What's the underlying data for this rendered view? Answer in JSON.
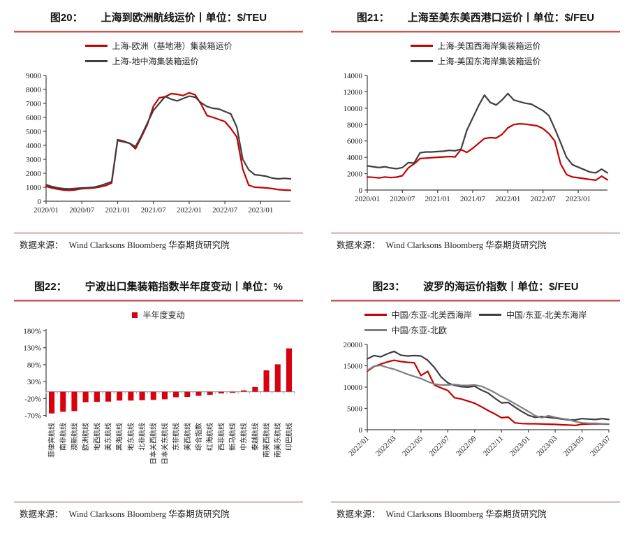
{
  "source_note": {
    "label": "数据来源：",
    "text": "Wind Clarksons Bloomberg 华泰期货研究院"
  },
  "colors": {
    "red": "#c40000",
    "bar_red": "#d8020f",
    "dark": "#3f3f3f",
    "gray": "#7f7f7f",
    "axis": "#404040",
    "grid_gray": "#a6a6a6",
    "divider_red": "#b43c3c"
  },
  "figures": [
    {
      "label": "图20：",
      "title": "上海到欧洲航线运价丨单位：$/TEU"
    },
    {
      "label": "图21：",
      "title": "上海至美东美西港口运价丨单位：$/FEU"
    },
    {
      "label": "图22：",
      "title": "宁波出口集装箱指数半年度变动丨单位：%"
    },
    {
      "label": "图23：",
      "title": "波罗的海运价指数丨单位：$/FEU"
    }
  ],
  "chart_data": [
    {
      "type": "line",
      "title": "上海到欧洲航线运价",
      "unit": "$/TEU",
      "n_points": 42,
      "x_tick_indices": [
        0,
        6,
        12,
        18,
        24,
        30,
        36
      ],
      "x_tick_labels": [
        "2020/01",
        "2020/07",
        "2021/01",
        "2021/07",
        "2022/01",
        "2022/07",
        "2023/01"
      ],
      "ylim": [
        0,
        9000
      ],
      "y_ticks": [
        0,
        1000,
        2000,
        3000,
        4000,
        5000,
        6000,
        7000,
        8000,
        9000
      ],
      "legend_position": "top",
      "grid": false,
      "series": [
        {
          "name": "上海-欧洲（基地港）集装箱运价",
          "color": "red",
          "values": [
            1060,
            950,
            860,
            800,
            780,
            820,
            900,
            920,
            950,
            1020,
            1120,
            1300,
            4400,
            4300,
            4150,
            3750,
            4600,
            5500,
            6800,
            7400,
            7480,
            7700,
            7650,
            7560,
            7760,
            7620,
            6950,
            6130,
            6000,
            5850,
            5700,
            5200,
            4600,
            2300,
            1150,
            1000,
            980,
            950,
            900,
            830,
            800,
            780
          ]
        },
        {
          "name": "上海-地中海集装箱运价",
          "color": "dark",
          "values": [
            1180,
            1050,
            950,
            900,
            880,
            920,
            950,
            970,
            1000,
            1100,
            1250,
            1400,
            4350,
            4250,
            4150,
            3900,
            4700,
            5600,
            6500,
            7000,
            7500,
            7300,
            7180,
            7350,
            7520,
            7450,
            7050,
            6780,
            6650,
            6600,
            6420,
            6250,
            5300,
            3000,
            2250,
            1900,
            1850,
            1780,
            1650,
            1600,
            1640,
            1600
          ]
        }
      ]
    },
    {
      "type": "line",
      "title": "上海至美东美西港口运价",
      "unit": "$/FEU",
      "n_points": 42,
      "x_tick_indices": [
        0,
        6,
        12,
        18,
        24,
        30,
        36
      ],
      "x_tick_labels": [
        "2020/01",
        "2020/07",
        "2021/01",
        "2021/07",
        "2022/01",
        "2022/07",
        "2023/01"
      ],
      "ylim": [
        0,
        14000
      ],
      "y_ticks": [
        0,
        2000,
        4000,
        6000,
        8000,
        10000,
        12000,
        14000
      ],
      "legend_position": "top",
      "grid": false,
      "series": [
        {
          "name": "上海-美国西海岸集装箱运价",
          "color": "red",
          "values": [
            1600,
            1550,
            1480,
            1600,
            1520,
            1580,
            1750,
            2700,
            3200,
            3850,
            3900,
            3950,
            4000,
            4050,
            4100,
            4050,
            4950,
            4600,
            5100,
            5700,
            6300,
            6400,
            6350,
            6800,
            7600,
            8000,
            8100,
            8050,
            7950,
            7850,
            7500,
            6900,
            6000,
            3200,
            1900,
            1600,
            1500,
            1400,
            1300,
            1200,
            1700,
            1250
          ]
        },
        {
          "name": "上海-美国东海岸集装箱运价",
          "color": "dark",
          "values": [
            2950,
            2850,
            2750,
            2850,
            2700,
            2600,
            2750,
            3350,
            3300,
            4550,
            4650,
            4650,
            4700,
            4750,
            4850,
            4800,
            5000,
            7300,
            8800,
            10300,
            11600,
            10700,
            10400,
            11000,
            11800,
            11000,
            10800,
            10600,
            10500,
            10100,
            9700,
            9100,
            7500,
            5800,
            4000,
            3100,
            2800,
            2500,
            2200,
            2100,
            2550,
            2100
          ]
        }
      ]
    },
    {
      "type": "bar",
      "title": "宁波出口集装箱指数半年度变动",
      "unit": "%",
      "legend": [
        {
          "name": "半年度变动",
          "color": "bar_red"
        }
      ],
      "categories": [
        "菲律宾航线",
        "南非航线",
        "澳新航线",
        "欧洲航线",
        "地西航线",
        "美东航线",
        "黑海航线",
        "地东航线",
        "北非航线",
        "日本关西航线",
        "日本关东航线",
        "东非航线",
        "美西航线",
        "综合指数",
        "红海航线",
        "西非航线",
        "新马航线",
        "中东航线",
        "泰越航线",
        "南美西航线",
        "南美东航线",
        "印巴航线"
      ],
      "values": [
        -64,
        -59,
        -57,
        -31,
        -30,
        -29,
        -26,
        -26,
        -25,
        -24,
        -22,
        -16,
        -15,
        -12,
        -9,
        -5,
        -3,
        4,
        14,
        63,
        81,
        128
      ],
      "ylim": [
        -75,
        185
      ],
      "y_ticks": [
        -70,
        -20,
        30,
        80,
        130,
        180
      ],
      "y_tick_suffix": "%",
      "x_label_rotate": 90,
      "grid": false
    },
    {
      "type": "line",
      "title": "波罗的海运价指数",
      "unit": "$/FEU",
      "n_points": 37,
      "x_tick_indices": [
        0,
        4,
        8,
        12,
        16,
        20,
        24,
        28,
        32,
        36
      ],
      "x_tick_labels": [
        "2022/01",
        "2022/03",
        "2022/05",
        "2022/07",
        "2022/09",
        "2022/11",
        "2023/01",
        "2023/03",
        "2023/05",
        "2023/07"
      ],
      "x_label_rotate": 45,
      "ylim": [
        0,
        20000
      ],
      "y_ticks": [
        0,
        5000,
        10000,
        15000,
        20000
      ],
      "legend_position": "top",
      "grid": false,
      "series": [
        {
          "name": "中国/东亚-北美西海岸",
          "color": "red",
          "values": [
            13700,
            14800,
            15400,
            15900,
            16300,
            16000,
            15800,
            15700,
            12700,
            13700,
            10500,
            9800,
            9200,
            7500,
            7200,
            6700,
            6200,
            5400,
            4500,
            3700,
            2800,
            2950,
            1600,
            1450,
            1400,
            1400,
            1350,
            1300,
            1250,
            1150,
            1100,
            1000,
            1300,
            1350,
            1400,
            1350,
            1300
          ]
        },
        {
          "name": "中国/东亚-北美东海岸",
          "color": "dark",
          "values": [
            16600,
            17400,
            17100,
            17800,
            18400,
            17500,
            17300,
            17400,
            17300,
            16300,
            14600,
            12400,
            11000,
            10400,
            10100,
            10000,
            10200,
            9300,
            8600,
            7400,
            6300,
            6400,
            5300,
            4300,
            3400,
            2900,
            3100,
            2900,
            2700,
            2500,
            2300,
            2300,
            2600,
            2500,
            2400,
            2600,
            2400
          ]
        },
        {
          "name": "中国/东亚-北欧",
          "color": "gray",
          "values": [
            13900,
            14900,
            15100,
            14600,
            14200,
            13600,
            13000,
            12500,
            12000,
            11300,
            10700,
            10500,
            10500,
            10600,
            10400,
            10400,
            10500,
            10200,
            9500,
            8700,
            7800,
            7000,
            6100,
            5200,
            4300,
            3300,
            2800,
            3300,
            2900,
            2600,
            2400,
            1900,
            1600,
            1500,
            1500,
            1400,
            1350
          ]
        }
      ]
    }
  ]
}
